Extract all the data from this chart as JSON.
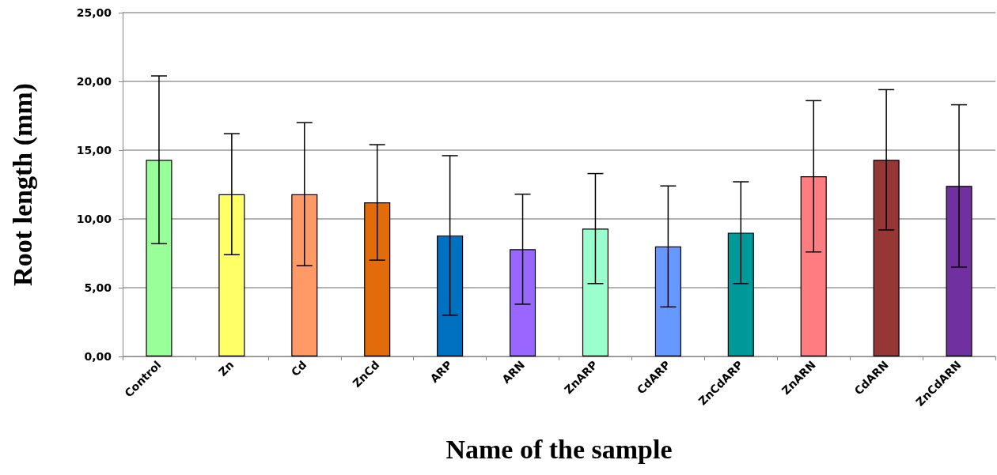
{
  "chart_data": {
    "type": "bar",
    "xlabel": "Name of the sample",
    "ylabel": "Root length (mm)",
    "categories": [
      "Control",
      "Zn",
      "Cd",
      "ZnCd",
      "ARP",
      "ARN",
      "ZnARP",
      "CdARP",
      "ZnCdARP",
      "ZnARN",
      "CdARN",
      "ZnCdARN"
    ],
    "values": [
      14.3,
      11.8,
      11.8,
      11.2,
      8.8,
      7.8,
      9.3,
      8.0,
      9.0,
      13.1,
      14.3,
      12.4
    ],
    "errors": [
      6.1,
      4.4,
      5.2,
      4.2,
      5.8,
      4.0,
      4.0,
      4.4,
      3.7,
      5.5,
      5.1,
      5.9
    ],
    "colors": [
      "#99ff99",
      "#ffff66",
      "#ff9966",
      "#e36c0a",
      "#0070c0",
      "#9966ff",
      "#99ffcc",
      "#6699ff",
      "#009999",
      "#ff7c80",
      "#953735",
      "#7030a0"
    ],
    "ylim": [
      0,
      25
    ],
    "yticks": [
      {
        "value": 0,
        "label": "0,00"
      },
      {
        "value": 5,
        "label": "5,00"
      },
      {
        "value": 10,
        "label": "10,00"
      },
      {
        "value": 15,
        "label": "15,00"
      },
      {
        "value": 20,
        "label": "20,00"
      },
      {
        "value": 25,
        "label": "25,00"
      }
    ],
    "grid": "y"
  }
}
